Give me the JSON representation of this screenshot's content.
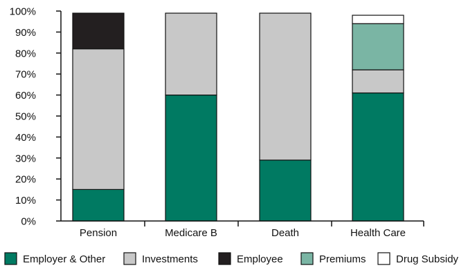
{
  "chart_data": {
    "type": "bar",
    "stacked": true,
    "categories": [
      "Pension",
      "Medicare B",
      "Death",
      "Health Care"
    ],
    "series": [
      {
        "name": "Employer & Other",
        "color": "#007a62",
        "values": [
          15,
          60,
          29,
          61
        ]
      },
      {
        "name": "Investments",
        "color": "#c8c8c8",
        "values": [
          67,
          39,
          70,
          11
        ]
      },
      {
        "name": "Employee",
        "color": "#231f20",
        "values": [
          17,
          0,
          0,
          0
        ]
      },
      {
        "name": "Premiums",
        "color": "#7ab5a4",
        "values": [
          0,
          0,
          0,
          22
        ]
      },
      {
        "name": "Drug Subsidy",
        "color": "#ffffff",
        "values": [
          0,
          0,
          0,
          4
        ]
      }
    ],
    "y_ticks": [
      "0%",
      "10%",
      "20%",
      "30%",
      "40%",
      "50%",
      "60%",
      "70%",
      "80%",
      "90%",
      "100%"
    ],
    "ylim": [
      0,
      100
    ],
    "grid": false,
    "legend_position": "bottom",
    "title": "",
    "xlabel": "",
    "ylabel": ""
  }
}
